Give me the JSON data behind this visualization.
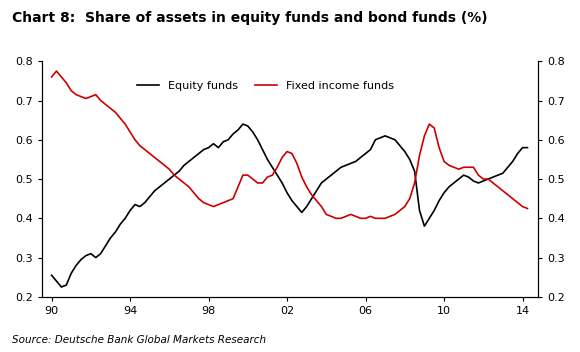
{
  "title": "Chart 8:  Share of assets in equity funds and bond funds (%)",
  "source": "Source: Deutsche Bank Global Markets Research",
  "equity_label": "Equity funds",
  "fixed_label": "Fixed income funds",
  "equity_color": "#000000",
  "fixed_color": "#cc0000",
  "ylim": [
    0.2,
    0.8
  ],
  "yticks": [
    0.2,
    0.3,
    0.4,
    0.5,
    0.6,
    0.7,
    0.8
  ],
  "xticks": [
    1990,
    1994,
    1998,
    2002,
    2006,
    2010,
    2014
  ],
  "xticklabels": [
    "90",
    "94",
    "98",
    "02",
    "06",
    "10",
    "14"
  ],
  "equity_x": [
    1990.0,
    1990.25,
    1990.5,
    1990.75,
    1991.0,
    1991.25,
    1991.5,
    1991.75,
    1992.0,
    1992.25,
    1992.5,
    1992.75,
    1993.0,
    1993.25,
    1993.5,
    1993.75,
    1994.0,
    1994.25,
    1994.5,
    1994.75,
    1995.0,
    1995.25,
    1995.5,
    1995.75,
    1996.0,
    1996.25,
    1996.5,
    1996.75,
    1997.0,
    1997.25,
    1997.5,
    1997.75,
    1998.0,
    1998.25,
    1998.5,
    1998.75,
    1999.0,
    1999.25,
    1999.5,
    1999.75,
    2000.0,
    2000.25,
    2000.5,
    2000.75,
    2001.0,
    2001.25,
    2001.5,
    2001.75,
    2002.0,
    2002.25,
    2002.5,
    2002.75,
    2003.0,
    2003.25,
    2003.5,
    2003.75,
    2004.0,
    2004.25,
    2004.5,
    2004.75,
    2005.0,
    2005.25,
    2005.5,
    2005.75,
    2006.0,
    2006.25,
    2006.5,
    2006.75,
    2007.0,
    2007.25,
    2007.5,
    2007.75,
    2008.0,
    2008.25,
    2008.5,
    2008.75,
    2009.0,
    2009.25,
    2009.5,
    2009.75,
    2010.0,
    2010.25,
    2010.5,
    2010.75,
    2011.0,
    2011.25,
    2011.5,
    2011.75,
    2012.0,
    2012.25,
    2012.5,
    2012.75,
    2013.0,
    2013.25,
    2013.5,
    2013.75,
    2014.0,
    2014.25
  ],
  "equity_y": [
    0.255,
    0.24,
    0.225,
    0.23,
    0.26,
    0.28,
    0.295,
    0.305,
    0.31,
    0.3,
    0.31,
    0.33,
    0.35,
    0.365,
    0.385,
    0.4,
    0.42,
    0.435,
    0.43,
    0.44,
    0.455,
    0.47,
    0.48,
    0.49,
    0.5,
    0.51,
    0.52,
    0.535,
    0.545,
    0.555,
    0.565,
    0.575,
    0.58,
    0.59,
    0.58,
    0.595,
    0.6,
    0.615,
    0.625,
    0.64,
    0.635,
    0.62,
    0.6,
    0.575,
    0.55,
    0.53,
    0.51,
    0.49,
    0.465,
    0.445,
    0.43,
    0.415,
    0.43,
    0.45,
    0.47,
    0.49,
    0.5,
    0.51,
    0.52,
    0.53,
    0.535,
    0.54,
    0.545,
    0.555,
    0.565,
    0.575,
    0.6,
    0.605,
    0.61,
    0.605,
    0.6,
    0.585,
    0.57,
    0.55,
    0.52,
    0.42,
    0.38,
    0.4,
    0.42,
    0.445,
    0.465,
    0.48,
    0.49,
    0.5,
    0.51,
    0.505,
    0.495,
    0.49,
    0.495,
    0.5,
    0.505,
    0.51,
    0.515,
    0.53,
    0.545,
    0.565,
    0.58,
    0.58
  ],
  "fixed_x": [
    1990.0,
    1990.25,
    1990.5,
    1990.75,
    1991.0,
    1991.25,
    1991.5,
    1991.75,
    1992.0,
    1992.25,
    1992.5,
    1992.75,
    1993.0,
    1993.25,
    1993.5,
    1993.75,
    1994.0,
    1994.25,
    1994.5,
    1994.75,
    1995.0,
    1995.25,
    1995.5,
    1995.75,
    1996.0,
    1996.25,
    1996.5,
    1996.75,
    1997.0,
    1997.25,
    1997.5,
    1997.75,
    1998.0,
    1998.25,
    1998.5,
    1998.75,
    1999.0,
    1999.25,
    1999.5,
    1999.75,
    2000.0,
    2000.25,
    2000.5,
    2000.75,
    2001.0,
    2001.25,
    2001.5,
    2001.75,
    2002.0,
    2002.25,
    2002.5,
    2002.75,
    2003.0,
    2003.25,
    2003.5,
    2003.75,
    2004.0,
    2004.25,
    2004.5,
    2004.75,
    2005.0,
    2005.25,
    2005.5,
    2005.75,
    2006.0,
    2006.25,
    2006.5,
    2006.75,
    2007.0,
    2007.25,
    2007.5,
    2007.75,
    2008.0,
    2008.25,
    2008.5,
    2008.75,
    2009.0,
    2009.25,
    2009.5,
    2009.75,
    2010.0,
    2010.25,
    2010.5,
    2010.75,
    2011.0,
    2011.25,
    2011.5,
    2011.75,
    2012.0,
    2012.25,
    2012.5,
    2012.75,
    2013.0,
    2013.25,
    2013.5,
    2013.75,
    2014.0,
    2014.25
  ],
  "fixed_y": [
    0.76,
    0.775,
    0.76,
    0.745,
    0.725,
    0.715,
    0.71,
    0.705,
    0.71,
    0.715,
    0.7,
    0.69,
    0.68,
    0.67,
    0.655,
    0.64,
    0.62,
    0.6,
    0.585,
    0.575,
    0.565,
    0.555,
    0.545,
    0.535,
    0.525,
    0.51,
    0.5,
    0.49,
    0.48,
    0.465,
    0.45,
    0.44,
    0.435,
    0.43,
    0.435,
    0.44,
    0.445,
    0.45,
    0.48,
    0.51,
    0.51,
    0.5,
    0.49,
    0.49,
    0.505,
    0.51,
    0.53,
    0.555,
    0.57,
    0.565,
    0.54,
    0.505,
    0.48,
    0.46,
    0.445,
    0.43,
    0.41,
    0.405,
    0.4,
    0.4,
    0.405,
    0.41,
    0.405,
    0.4,
    0.4,
    0.405,
    0.4,
    0.4,
    0.4,
    0.405,
    0.41,
    0.42,
    0.43,
    0.45,
    0.49,
    0.56,
    0.61,
    0.64,
    0.63,
    0.58,
    0.545,
    0.535,
    0.53,
    0.525,
    0.53,
    0.53,
    0.53,
    0.51,
    0.5,
    0.5,
    0.49,
    0.48,
    0.47,
    0.46,
    0.45,
    0.44,
    0.43,
    0.425
  ]
}
